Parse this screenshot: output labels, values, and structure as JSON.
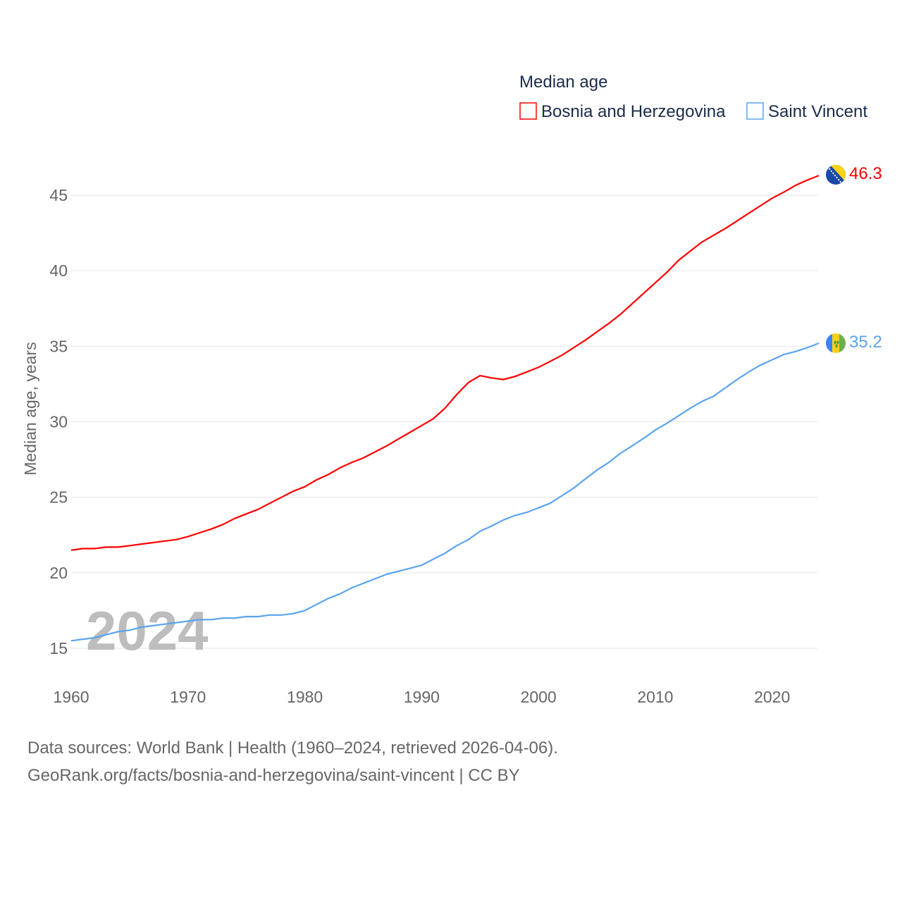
{
  "chart_data": {
    "type": "line",
    "title": "Median age",
    "ylabel": "Median age, years",
    "xlabel": "",
    "xlim": [
      1960,
      2024
    ],
    "ylim": [
      13,
      48
    ],
    "yticks": [
      15,
      20,
      25,
      30,
      35,
      40,
      45
    ],
    "xticks": [
      1960,
      1970,
      1980,
      1990,
      2000,
      2010,
      2020
    ],
    "grid": true,
    "legend_position": "top-right",
    "watermark_year": "2024",
    "x": [
      1960,
      1961,
      1962,
      1963,
      1964,
      1965,
      1966,
      1967,
      1968,
      1969,
      1970,
      1971,
      1972,
      1973,
      1974,
      1975,
      1976,
      1977,
      1978,
      1979,
      1980,
      1981,
      1982,
      1983,
      1984,
      1985,
      1986,
      1987,
      1988,
      1989,
      1990,
      1991,
      1992,
      1993,
      1994,
      1995,
      1996,
      1997,
      1998,
      1999,
      2000,
      2001,
      2002,
      2003,
      2004,
      2005,
      2006,
      2007,
      2008,
      2009,
      2010,
      2011,
      2012,
      2013,
      2014,
      2015,
      2016,
      2017,
      2018,
      2019,
      2020,
      2021,
      2022,
      2023,
      2024
    ],
    "series": [
      {
        "name": "Bosnia and Herzegovina",
        "color": "#ff0000",
        "end_label": "46.3",
        "flag": "bosnia-flag-icon",
        "values": [
          21.5,
          21.6,
          21.6,
          21.7,
          21.7,
          21.8,
          21.9,
          22.0,
          22.1,
          22.2,
          22.4,
          22.65,
          22.9,
          23.2,
          23.6,
          23.9,
          24.2,
          24.6,
          25.0,
          25.4,
          25.7,
          26.15,
          26.5,
          26.95,
          27.3,
          27.6,
          28.0,
          28.4,
          28.85,
          29.3,
          29.75,
          30.2,
          30.9,
          31.8,
          32.6,
          33.05,
          32.9,
          32.8,
          33.0,
          33.3,
          33.6,
          34.0,
          34.4,
          34.9,
          35.4,
          35.95,
          36.5,
          37.1,
          37.8,
          38.5,
          39.2,
          39.9,
          40.7,
          41.3,
          41.9,
          42.35,
          42.8,
          43.3,
          43.8,
          44.3,
          44.8,
          45.2,
          45.65,
          46.0,
          46.3
        ]
      },
      {
        "name": "Saint Vincent",
        "color": "#5ba4ee",
        "end_label": "35.2",
        "flag": "saint-vincent-flag-icon",
        "values": [
          15.5,
          15.6,
          15.7,
          15.9,
          16.1,
          16.2,
          16.4,
          16.5,
          16.6,
          16.7,
          16.8,
          16.9,
          16.9,
          17.0,
          17.0,
          17.1,
          17.1,
          17.2,
          17.2,
          17.3,
          17.5,
          17.9,
          18.3,
          18.6,
          19.0,
          19.3,
          19.6,
          19.9,
          20.1,
          20.3,
          20.5,
          20.9,
          21.3,
          21.8,
          22.2,
          22.75,
          23.1,
          23.5,
          23.8,
          24.0,
          24.3,
          24.6,
          25.1,
          25.6,
          26.2,
          26.8,
          27.3,
          27.9,
          28.4,
          28.9,
          29.45,
          29.9,
          30.4,
          30.9,
          31.35,
          31.7,
          32.25,
          32.8,
          33.3,
          33.75,
          34.1,
          34.45,
          34.65,
          34.9,
          35.2
        ]
      }
    ]
  },
  "footer": {
    "line1": "Data sources: World Bank | Health (1960–2024, retrieved 2026-04-06).",
    "line2": "GeoRank.org/facts/bosnia-and-herzegovina/saint-vincent | CC BY"
  }
}
